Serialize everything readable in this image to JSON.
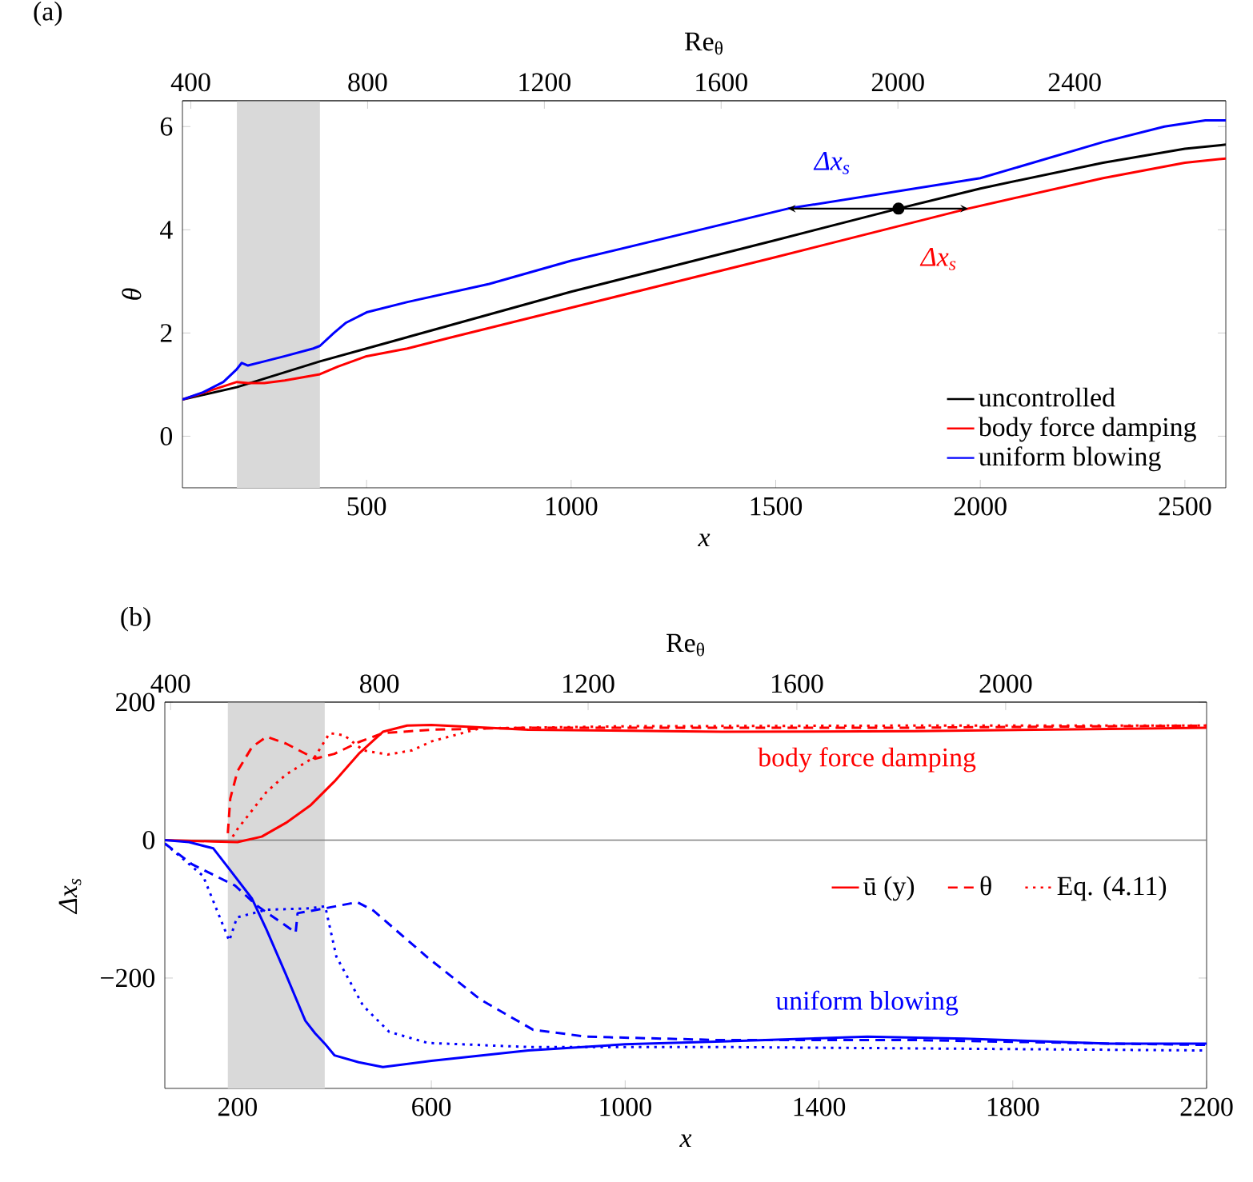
{
  "chart_data": [
    {
      "type": "line",
      "title": "(a)",
      "xlabel": "x",
      "ylabel": "θ",
      "x2label": "Re$_{θ}$",
      "xlim": [
        50,
        2600
      ],
      "ylim": [
        -1,
        6.5
      ],
      "xticks": [
        500,
        1000,
        1500,
        2000,
        2500
      ],
      "yticks": [
        0,
        2,
        4,
        6
      ],
      "x2lim": [
        381,
        2742
      ],
      "x2ticks": [
        400,
        800,
        1200,
        1600,
        2000,
        2400
      ],
      "bands": [
        {
          "axis": "x",
          "from": 183,
          "to": 386,
          "color": "#d9d9d9"
        }
      ],
      "legend": "bottom right",
      "series": [
        {
          "name": "uncontrolled",
          "color": "#000000",
          "line_style": "solid",
          "x": [
            50,
            183,
            386,
            500,
            1000,
            1500,
            1800,
            2000,
            2300,
            2500,
            2600
          ],
          "values": [
            0.71,
            0.95,
            1.45,
            1.7,
            2.8,
            3.8,
            4.41,
            4.8,
            5.3,
            5.57,
            5.65
          ]
        },
        {
          "name": "body force damping",
          "color": "#ff0000",
          "line_style": "solid",
          "x": [
            50,
            183,
            210,
            250,
            300,
            386,
            430,
            500,
            600,
            700,
            1000,
            1500,
            1970,
            2300,
            2500,
            2600
          ],
          "values": [
            0.71,
            1.05,
            1.03,
            1.03,
            1.08,
            1.2,
            1.35,
            1.55,
            1.7,
            1.9,
            2.49,
            3.47,
            4.41,
            5.0,
            5.3,
            5.38
          ]
        },
        {
          "name": "uniform blowing",
          "color": "#0000ff",
          "line_style": "solid",
          "x": [
            50,
            100,
            150,
            183,
            195,
            210,
            250,
            300,
            370,
            386,
            420,
            450,
            500,
            600,
            800,
            1000,
            1530,
            2000,
            2300,
            2450,
            2550,
            2600
          ],
          "values": [
            0.71,
            0.85,
            1.05,
            1.3,
            1.42,
            1.37,
            1.45,
            1.55,
            1.7,
            1.75,
            2.0,
            2.2,
            2.4,
            2.6,
            2.95,
            3.4,
            4.41,
            5.0,
            5.7,
            6.0,
            6.12,
            6.12
          ]
        },
        {
          "type": "scatter",
          "color": "#000000",
          "x": [
            1800
          ],
          "values": [
            4.41
          ]
        }
      ],
      "annotations": [
        "Δx$_{s}$",
        "Δx$_{s}$"
      ]
    },
    {
      "type": "line",
      "title": "(b)",
      "xlabel": "x",
      "ylabel": "Δx$_{s}$",
      "x2label": "Re$_{θ}$",
      "xlim": [
        50,
        2200
      ],
      "ylim": [
        -360,
        200
      ],
      "xticks": [
        200,
        600,
        1000,
        1400,
        1800,
        2200
      ],
      "yticks": [
        {
          "value": -200,
          "label": "−200"
        },
        0,
        200
      ],
      "x2lim": [
        389,
        2385
      ],
      "x2ticks": [
        400,
        800,
        1200,
        1600,
        2000
      ],
      "bands": [
        {
          "axis": "x",
          "from": 180,
          "to": 380,
          "color": "#d9d9d9"
        }
      ],
      "ref_lines": [
        {
          "axis": "y",
          "value": 0,
          "color": "#808080"
        }
      ],
      "legend": "right",
      "series": [
        {
          "name": "ū (y)",
          "color": "#ff0000",
          "line_style": "solid",
          "x": [
            50,
            150,
            200,
            250,
            300,
            350,
            400,
            450,
            500,
            550,
            600,
            800,
            1200,
            1600,
            2000,
            2200
          ],
          "values": [
            0,
            -2,
            -3,
            5,
            25,
            50,
            85,
            125,
            157,
            166,
            167,
            160,
            157,
            158,
            161,
            163
          ]
        },
        {
          "name": "θ",
          "color": "#ff0000",
          "line_style": "dashed",
          "x": [
            180,
            185,
            200,
            230,
            260,
            300,
            360,
            400,
            450,
            500,
            600,
            800,
            1200,
            1600,
            2000,
            2200
          ],
          "values": [
            10,
            60,
            100,
            135,
            150,
            140,
            118,
            125,
            142,
            155,
            160,
            163,
            163,
            163,
            165,
            166
          ]
        },
        {
          "name": "Eq. (4.11)",
          "color": "#ff0000",
          "line_style": "dotted",
          "x": [
            190,
            200,
            260,
            300,
            360,
            390,
            420,
            460,
            510,
            560,
            600,
            700,
            1000,
            1600,
            2200
          ],
          "values": [
            5,
            16,
            70,
            95,
            121,
            155,
            152,
            130,
            124,
            130,
            143,
            162,
            165,
            166,
            166
          ]
        },
        {
          "color": "#0000ff",
          "line_style": "solid",
          "x": [
            50,
            100,
            150,
            183,
            230,
            260,
            300,
            340,
            360,
            380,
            400,
            450,
            500,
            600,
            800,
            1000,
            1200,
            1500,
            1700,
            2000,
            2200
          ],
          "values": [
            0,
            -3,
            -12,
            -42,
            -85,
            -130,
            -195,
            -262,
            -280,
            -295,
            -312,
            -322,
            -329,
            -320,
            -305,
            -296,
            -292,
            -285,
            -288,
            -295,
            -295
          ]
        },
        {
          "color": "#0000ff",
          "line_style": "dashed",
          "x": [
            50,
            106,
            195,
            240,
            320,
            324,
            380,
            447,
            480,
            592,
            701,
            810,
            920,
            1200,
            1600,
            2000,
            2200
          ],
          "values": [
            -5,
            -35,
            -66,
            -95,
            -134,
            -106,
            -99,
            -90,
            -102,
            -170,
            -231,
            -275,
            -285,
            -290,
            -290,
            -295,
            -297
          ]
        },
        {
          "color": "#0000ff",
          "line_style": "dotted",
          "x": [
            50,
            129,
            183,
            199,
            260,
            347,
            381,
            404,
            459,
            513,
            592,
            800,
            1200,
            1600,
            2000,
            2200
          ],
          "values": [
            -5,
            -52,
            -146,
            -112,
            -101,
            -99,
            -96,
            -169,
            -240,
            -278,
            -294,
            -300,
            -300,
            -302,
            -304,
            -305
          ]
        }
      ],
      "annotations": [
        "body force damping",
        "uniform blowing"
      ]
    }
  ]
}
